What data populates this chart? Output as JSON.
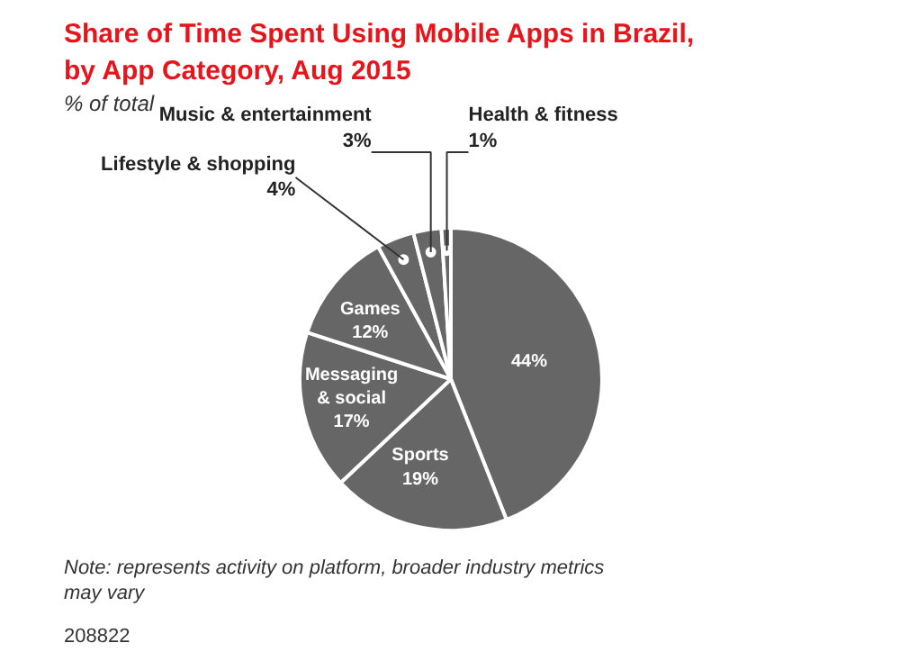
{
  "chart_data": {
    "type": "pie",
    "title": "Share of Time Spent Using Mobile Apps in Brazil,\nby App Category, Aug 2015",
    "subtitle": "% of total",
    "categories": [
      null,
      "Sports",
      "Messaging & social",
      "Games",
      "Lifestyle & shopping",
      "Music & entertainment",
      "Health & fitness"
    ],
    "values": [
      44,
      19,
      17,
      12,
      4,
      3,
      1
    ],
    "colors": [
      "#666666",
      "#666666",
      "#666666",
      "#666666",
      "#666666",
      "#666666",
      "#666666"
    ],
    "value_labels": [
      "44%",
      "19%",
      "17%",
      "12%",
      "4%",
      "3%",
      "1%"
    ],
    "annotations": [
      "Note: represents activity on platform, broader industry metrics\nmay vary",
      "208822"
    ]
  }
}
